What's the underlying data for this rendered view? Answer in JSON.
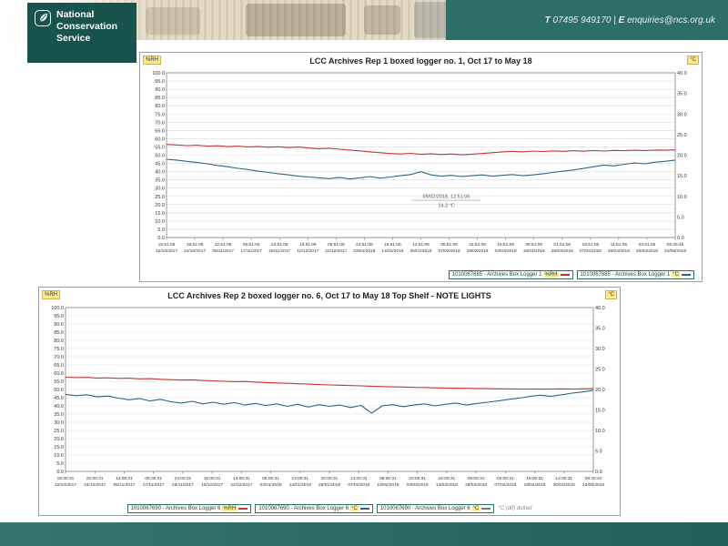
{
  "header": {
    "logo": {
      "line1": "National",
      "line2": "Conservation",
      "line3": "Service"
    },
    "contact": {
      "phone_label": "T",
      "phone": "07495 949170",
      "divider": "|",
      "email_label": "E",
      "email": "enquiries@ncs.org.uk"
    }
  },
  "chart_data": [
    {
      "type": "line",
      "title": "LCC Archives Rep 1 boxed logger no. 1, Oct 17 to May 18",
      "left_axis": {
        "label": "%RH",
        "min": 0,
        "max": 100,
        "ticks": [
          "100.0",
          "95.0",
          "90.0",
          "85.0",
          "80.0",
          "75.0",
          "70.0",
          "65.0",
          "60.0",
          "55.0",
          "50.0",
          "45.0",
          "40.0",
          "35.0",
          "30.0",
          "25.0",
          "20.0",
          "15.0",
          "10.0",
          "5.0",
          "0.0"
        ]
      },
      "right_axis": {
        "label": "°C",
        "min": 0,
        "max": 40,
        "ticks": [
          "40.0",
          "35.0",
          "30.0",
          "25.0",
          "20.0",
          "15.0",
          "10.0",
          "5.0",
          "0.0"
        ]
      },
      "x_ticks": {
        "times": [
          "15:51:06",
          "19:51:06",
          "12:51:06",
          "05:51:06",
          "22:51:06",
          "15:51:06",
          "05:51:06",
          "22:51:06",
          "15:51:06",
          "12:51:06",
          "05:51:06",
          "22:51:06",
          "15:51:06",
          "08:51:06",
          "01:51:06",
          "18:51:06",
          "11:51:06",
          "04:51:06",
          "05:25:45"
        ],
        "dates": [
          "12/10/2017",
          "24/10/2017",
          "05/11/2017",
          "17/11/2017",
          "28/11/2017",
          "10/12/2017",
          "22/12/2017",
          "03/01/2018",
          "14/01/2018",
          "26/01/2018",
          "07/02/2018",
          "19/02/2018",
          "03/03/2018",
          "15/03/2018",
          "26/03/2018",
          "07/04/2018",
          "18/04/2018",
          "30/04/2018",
          "23/05/2018"
        ]
      },
      "series": [
        {
          "name": "1010067685 - Archives Box Logger 1",
          "unit": "%RH",
          "axis": "left",
          "color": "#c63434",
          "values": [
            56.5,
            56.2,
            55.8,
            56.0,
            55.5,
            55.7,
            55.2,
            55.5,
            55.0,
            55.3,
            54.8,
            55.1,
            54.6,
            54.9,
            54.3,
            53.9,
            54.2,
            53.6,
            53.1,
            52.6,
            52.0,
            51.5,
            51.0,
            50.7,
            51.1,
            50.5,
            50.9,
            50.4,
            50.7,
            50.2,
            50.6,
            51.0,
            51.5,
            52.0,
            52.3,
            52.0,
            52.5,
            52.2,
            52.6,
            52.3,
            52.7,
            52.4,
            52.8,
            52.5,
            52.9,
            52.7,
            53.0,
            52.8,
            53.1,
            53.0,
            53.2
          ]
        },
        {
          "name": "1010067685 - Archives Box Logger 1",
          "unit": "°C",
          "axis": "right",
          "color": "#2f6486",
          "values": [
            19.0,
            18.8,
            18.5,
            18.2,
            17.9,
            17.5,
            17.2,
            16.8,
            16.5,
            16.1,
            15.8,
            15.5,
            15.2,
            14.9,
            14.7,
            14.5,
            14.3,
            14.6,
            14.2,
            14.5,
            14.8,
            14.4,
            14.7,
            15.0,
            15.3,
            16.0,
            15.2,
            14.9,
            15.1,
            14.8,
            15.0,
            15.2,
            14.9,
            15.1,
            15.3,
            15.0,
            15.2,
            15.5,
            15.8,
            16.1,
            16.4,
            16.8,
            17.2,
            17.6,
            17.4,
            17.8,
            18.1,
            17.9,
            18.3,
            18.5,
            18.8
          ]
        }
      ],
      "annotation": {
        "line1": "09/02/2018, 12:51:06",
        "line2": "14.3 °C",
        "x_pct": 55,
        "y_pct_left": 24
      },
      "legend": [
        {
          "id": "1010067685",
          "name": "Archives Box Logger 1",
          "unit": "%RH",
          "color": "#c63434"
        },
        {
          "id": "1010067685",
          "name": "Archives Box Logger 1",
          "unit": "°C",
          "color": "#2f6486"
        }
      ],
      "legend_note": ""
    },
    {
      "type": "line",
      "title": "LCC Archives Rep 2 boxed logger no. 6, Oct 17 to May 18 Top Shelf - NOTE LIGHTS",
      "left_axis": {
        "label": "%RH",
        "min": 0,
        "max": 100,
        "ticks": [
          "100.0",
          "95.0",
          "90.0",
          "85.0",
          "80.0",
          "75.0",
          "70.0",
          "65.0",
          "60.0",
          "55.0",
          "50.0",
          "45.0",
          "40.0",
          "35.0",
          "30.0",
          "25.0",
          "20.0",
          "15.0",
          "10.0",
          "5.0",
          "0.0"
        ]
      },
      "right_axis": {
        "label": "°C",
        "min": 0,
        "max": 40,
        "ticks": [
          "40.0",
          "35.0",
          "30.0",
          "25.0",
          "20.0",
          "15.0",
          "10.0",
          "5.0",
          "0.0"
        ]
      },
      "x_ticks": {
        "times": [
          "16:00:31",
          "20:00:31",
          "13:00:31",
          "06:00:31",
          "23:00:31",
          "16:00:31",
          "13:00:31",
          "06:00:31",
          "23:00:31",
          "20:00:31",
          "13:00:31",
          "06:00:31",
          "23:00:31",
          "16:00:31",
          "09:00:31",
          "02:00:31",
          "19:00:31",
          "12:00:31",
          "08:40:24"
        ],
        "dates": [
          "12/10/2017",
          "24/10/2017",
          "05/11/2017",
          "17/11/2017",
          "28/11/2017",
          "10/12/2017",
          "22/12/2017",
          "03/01/2018",
          "14/01/2018",
          "26/01/2018",
          "07/02/2018",
          "19/02/2018",
          "03/03/2018",
          "14/03/2018",
          "26/03/2018",
          "07/04/2018",
          "18/04/2018",
          "30/04/2018",
          "23/05/2018"
        ]
      },
      "series": [
        {
          "name": "1010067690 - Archives Box Logger 6",
          "unit": "%RH",
          "axis": "left",
          "color": "#c63434",
          "values": [
            57.5,
            57.3,
            57.4,
            57.0,
            57.1,
            56.8,
            56.9,
            56.5,
            56.6,
            56.2,
            56.0,
            55.8,
            55.9,
            55.5,
            55.3,
            55.0,
            54.8,
            54.9,
            54.5,
            54.2,
            54.0,
            53.8,
            53.5,
            53.3,
            53.0,
            52.8,
            52.6,
            52.4,
            52.2,
            52.0,
            51.8,
            51.6,
            51.5,
            51.3,
            51.2,
            51.0,
            50.9,
            50.8,
            50.7,
            50.6,
            50.5,
            50.4,
            50.4,
            50.3,
            50.3,
            50.2,
            50.3,
            50.4,
            50.3,
            50.4,
            50.5
          ]
        },
        {
          "name": "1010067690 - Archives Box Logger 6",
          "unit": "°C",
          "axis": "right",
          "color": "#2f6486",
          "values": [
            18.8,
            18.5,
            18.7,
            18.2,
            18.4,
            17.9,
            17.5,
            17.8,
            17.2,
            17.6,
            17.0,
            16.7,
            17.1,
            16.5,
            16.9,
            16.4,
            16.8,
            16.2,
            16.6,
            16.1,
            16.5,
            15.9,
            16.4,
            15.7,
            16.3,
            15.9,
            16.2,
            15.6,
            16.1,
            14.2,
            16.0,
            16.3,
            15.8,
            16.2,
            16.5,
            16.0,
            16.4,
            16.7,
            16.2,
            16.6,
            16.9,
            17.2,
            17.6,
            17.9,
            18.3,
            18.6,
            18.3,
            18.7,
            19.1,
            19.4,
            19.8
          ]
        }
      ],
      "annotation": null,
      "legend": [
        {
          "id": "1010067690",
          "name": "Archives Box Logger 6",
          "unit": "%RH",
          "color": "#c63434"
        },
        {
          "id": "1010067690",
          "name": "Archives Box Logger 6",
          "unit": "°C",
          "color": "#2f6486"
        },
        {
          "id": "1010067690",
          "name": "Archives Box Logger 6",
          "unit": "°C",
          "color": "#7a7a7a"
        }
      ],
      "legend_note": "°C (dif) dotted"
    }
  ]
}
